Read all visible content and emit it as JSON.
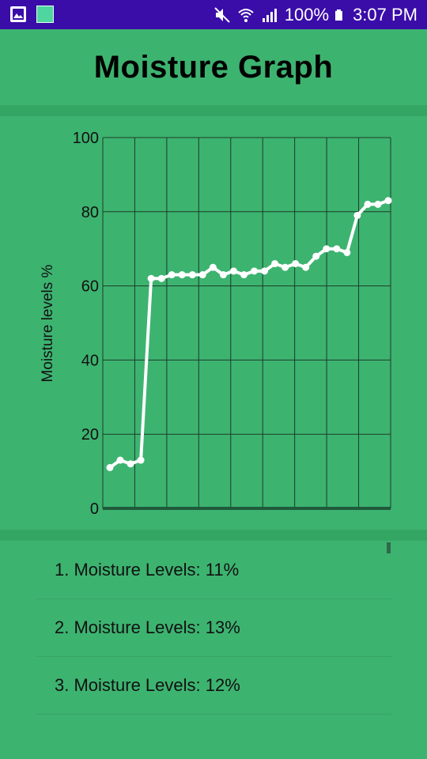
{
  "status_bar": {
    "battery": "100%",
    "time": "3:07 PM",
    "icons": [
      "gallery-icon",
      "app-icon",
      "mute-icon",
      "wifi-icon",
      "signal-icon",
      "battery-icon"
    ]
  },
  "header": {
    "title": "Moisture Graph"
  },
  "chart_data": {
    "type": "line",
    "title": "",
    "xlabel": "",
    "ylabel": "Moisture levels %",
    "ylim": [
      0,
      100
    ],
    "yticks": [
      0,
      20,
      40,
      60,
      80,
      100
    ],
    "grid": true,
    "line_color": "#ffffff",
    "values": [
      11,
      13,
      12,
      13,
      62,
      62,
      63,
      63,
      63,
      63,
      65,
      63,
      64,
      63,
      64,
      64,
      66,
      65,
      66,
      65,
      68,
      70,
      70,
      69,
      79,
      82,
      82,
      83
    ]
  },
  "list": {
    "items": [
      {
        "label": "1. Moisture Levels: 11%"
      },
      {
        "label": "2. Moisture Levels: 13%"
      },
      {
        "label": "3. Moisture Levels: 12%"
      }
    ]
  },
  "colors": {
    "status_bar": "#3a0ca8",
    "background": "#3db370",
    "band": "#34a664",
    "axis": "#1f5b3b"
  }
}
